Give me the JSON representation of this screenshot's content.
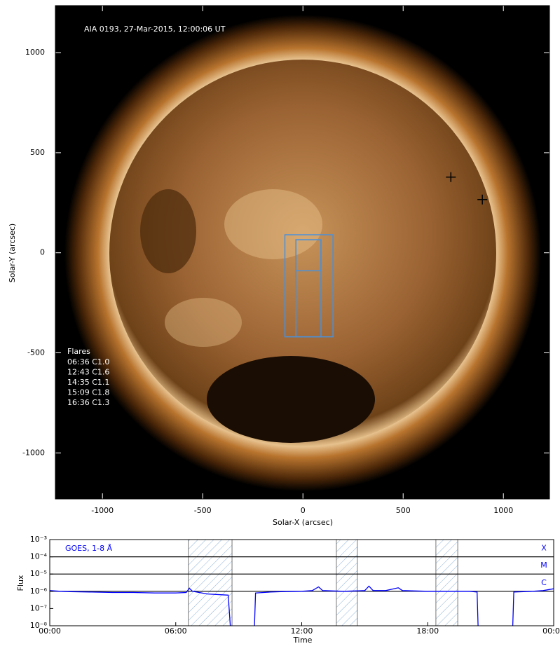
{
  "chart_data": [
    {
      "type": "image",
      "annotation": "AIA 0193, 27-Mar-2015, 12:00:06 UT",
      "xlabel": "Solar-X (arcsec)",
      "ylabel": "Solar-Y (arcsec)",
      "xlim": [
        -1235,
        1230
      ],
      "ylim": [
        -1230,
        1235
      ],
      "xticks": [
        -1000,
        -500,
        0,
        500,
        1000
      ],
      "yticks": [
        -1000,
        -500,
        0,
        500,
        1000
      ],
      "flares_title": "Flares",
      "flares": [
        "06:36 C1.0",
        "12:43 C1.6",
        "14:35 C1.1",
        "15:09 C1.8",
        "16:36 C1.3"
      ],
      "box_color": "#4a90d9",
      "boxes": [
        [
          -90,
          -420,
          150,
          90
        ],
        [
          -35,
          -420,
          90,
          65
        ],
        [
          -35,
          -90,
          90,
          65
        ]
      ],
      "markers": {
        "x": [
          738,
          895
        ],
        "y": [
          378,
          266
        ]
      }
    },
    {
      "type": "line",
      "title": "GOES, 1-8 Å",
      "xlabel": "Time",
      "ylabel": "Flux",
      "log_y": true,
      "xlim": [
        0,
        24
      ],
      "ylim": [
        1e-08,
        0.001
      ],
      "xticks": [
        {
          "value": 0,
          "label": "00:00"
        },
        {
          "value": 6,
          "label": "06:00"
        },
        {
          "value": 12,
          "label": "12:00"
        },
        {
          "value": 18,
          "label": "18:00"
        },
        {
          "value": 24,
          "label": "00:00"
        }
      ],
      "yticks": [
        {
          "value": 1e-08,
          "label": "10⁻⁸"
        },
        {
          "value": 1e-07,
          "label": "10⁻⁷"
        },
        {
          "value": 1e-06,
          "label": "10⁻⁶"
        },
        {
          "value": 1e-05,
          "label": "10⁻⁵"
        },
        {
          "value": 0.0001,
          "label": "10⁻⁴"
        },
        {
          "value": 0.001,
          "label": "10⁻³"
        }
      ],
      "levels": [
        {
          "value": 0.0001,
          "label": "X"
        },
        {
          "value": 1e-05,
          "label": "M"
        },
        {
          "value": 1e-06,
          "label": "C"
        }
      ],
      "shaded": [
        [
          6.6,
          8.68
        ],
        [
          13.65,
          14.65
        ],
        [
          18.39,
          19.43
        ]
      ],
      "x": [
        0,
        0.5,
        1,
        2,
        3,
        4,
        5,
        6,
        6.5,
        6.65,
        6.8,
        7.5,
        8.5,
        8.6,
        9.2,
        9.75,
        9.8,
        10.5,
        11,
        12,
        12.5,
        12.8,
        13,
        14,
        15,
        15.2,
        15.4,
        16,
        16.6,
        16.8,
        18,
        19,
        20,
        20.35,
        20.4,
        21.2,
        22.05,
        22.1,
        23,
        23.5,
        24
      ],
      "series": [
        {
          "name": "GOES, 1-8 Å",
          "color": "#0000ff",
          "values": [
            1.1e-06,
            1e-06,
            9.5e-07,
            9e-07,
            8.5e-07,
            8.5e-07,
            8e-07,
            8e-07,
            8.5e-07,
            1.5e-06,
            1e-06,
            7e-07,
            6e-07,
            1e-08,
            null,
            1e-08,
            8e-07,
            9e-07,
            9.5e-07,
            1e-06,
            1.1e-06,
            1.8e-06,
            1.1e-06,
            1e-06,
            1.1e-06,
            2e-06,
            1.1e-06,
            1.1e-06,
            1.6e-06,
            1.1e-06,
            1e-06,
            1e-06,
            1e-06,
            9e-07,
            1e-08,
            null,
            1e-08,
            9e-07,
            1e-06,
            1.1e-06,
            1.4e-06
          ]
        }
      ]
    }
  ]
}
